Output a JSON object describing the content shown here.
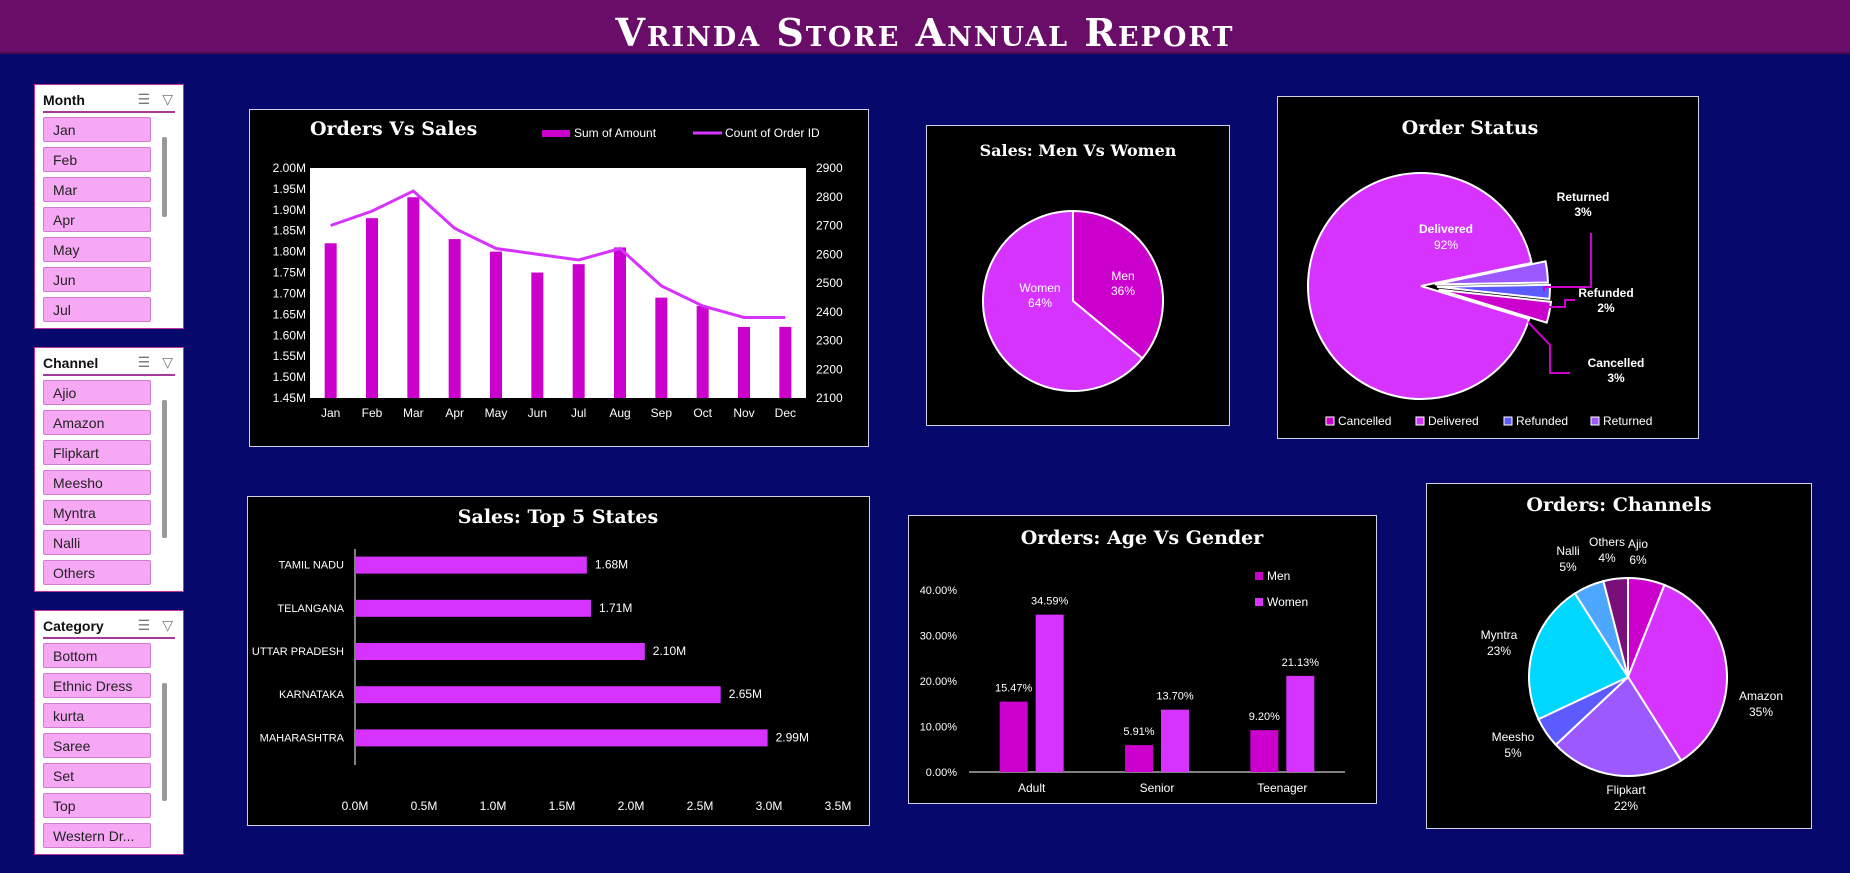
{
  "header": {
    "title": "Vrinda Store Annual Report"
  },
  "slicers": {
    "month": {
      "title": "Month",
      "items": [
        "Jan",
        "Feb",
        "Mar",
        "Apr",
        "May",
        "Jun",
        "Jul"
      ]
    },
    "channel": {
      "title": "Channel",
      "items": [
        "Ajio",
        "Amazon",
        "Flipkart",
        "Meesho",
        "Myntra",
        "Nalli",
        "Others"
      ]
    },
    "category": {
      "title": "Category",
      "items": [
        "Bottom",
        "Ethnic Dress",
        "kurta",
        "Saree",
        "Set",
        "Top",
        "Western Dr..."
      ]
    }
  },
  "colors": {
    "magenta": "#cc00cc",
    "violet": "#d633ff",
    "purple_bg": "#6a0d68",
    "navy": "#06086b",
    "cyan": "#00d7ff",
    "blue": "#4da6ff",
    "lavender": "#9b59ff",
    "plum": "#7a0f7a"
  },
  "chart_data": [
    {
      "id": "orders_vs_sales",
      "type": "bar+line",
      "title": "Orders Vs Sales",
      "categories": [
        "Jan",
        "Feb",
        "Mar",
        "Apr",
        "May",
        "Jun",
        "Jul",
        "Aug",
        "Sep",
        "Oct",
        "Nov",
        "Dec"
      ],
      "series": [
        {
          "name": "Sum of Amount",
          "type": "bar",
          "axis": "left",
          "values": [
            1.82,
            1.88,
            1.93,
            1.83,
            1.8,
            1.75,
            1.77,
            1.81,
            1.69,
            1.67,
            1.62,
            1.62
          ]
        },
        {
          "name": "Count of Order ID",
          "type": "line",
          "axis": "right",
          "values": [
            2700,
            2750,
            2820,
            2690,
            2620,
            2600,
            2580,
            2620,
            2490,
            2420,
            2380,
            2380
          ]
        }
      ],
      "y_left_ticks": [
        "2.00M",
        "1.95M",
        "1.90M",
        "1.85M",
        "1.80M",
        "1.75M",
        "1.70M",
        "1.65M",
        "1.60M",
        "1.55M",
        "1.50M",
        "1.45M"
      ],
      "y_right_ticks": [
        "2900",
        "2800",
        "2700",
        "2600",
        "2500",
        "2400",
        "2300",
        "2200",
        "2100"
      ],
      "ylim_left": [
        1.45,
        2.0
      ],
      "ylim_right": [
        2100,
        2900
      ],
      "legend": "top-right"
    },
    {
      "id": "men_vs_women",
      "type": "pie",
      "title": "Sales: Men Vs Women",
      "slices": [
        {
          "label": "Men",
          "value": 36,
          "pct": "36%"
        },
        {
          "label": "Women",
          "value": 64,
          "pct": "64%"
        }
      ]
    },
    {
      "id": "order_status",
      "type": "pie",
      "title": "Order Status",
      "slices": [
        {
          "label": "Delivered",
          "value": 92,
          "pct": "92%"
        },
        {
          "label": "Returned",
          "value": 3,
          "pct": "3%"
        },
        {
          "label": "Refunded",
          "value": 2,
          "pct": "2%"
        },
        {
          "label": "Cancelled",
          "value": 3,
          "pct": "3%"
        }
      ],
      "legend": [
        "Cancelled",
        "Delivered",
        "Refunded",
        "Returned"
      ],
      "legend_position": "bottom"
    },
    {
      "id": "top_states",
      "type": "bar",
      "orientation": "horizontal",
      "title": "Sales: Top 5 States",
      "categories": [
        "TAMIL NADU",
        "TELANGANA",
        "UTTAR PRADESH",
        "KARNATAKA",
        "MAHARASHTRA"
      ],
      "values": [
        1.68,
        1.71,
        2.1,
        2.65,
        2.99
      ],
      "labels": [
        "1.68M",
        "1.71M",
        "2.10M",
        "2.65M",
        "2.99M"
      ],
      "x_ticks": [
        "0.0M",
        "0.5M",
        "1.0M",
        "1.5M",
        "2.0M",
        "2.5M",
        "3.0M",
        "3.5M"
      ],
      "xlim": [
        0,
        3.5
      ]
    },
    {
      "id": "age_vs_gender",
      "type": "bar",
      "title": "Orders: Age Vs Gender",
      "categories": [
        "Adult",
        "Senior",
        "Teenager"
      ],
      "series": [
        {
          "name": "Men",
          "values": [
            15.47,
            5.91,
            9.2
          ],
          "labels": [
            "15.47%",
            "5.91%",
            "9.20%"
          ]
        },
        {
          "name": "Women",
          "values": [
            34.59,
            13.7,
            21.13
          ],
          "labels": [
            "34.59%",
            "13.70%",
            "21.13%"
          ]
        }
      ],
      "y_ticks": [
        "40.00%",
        "30.00%",
        "20.00%",
        "10.00%",
        "0.00%"
      ],
      "ylim": [
        0,
        40
      ],
      "legend": "top-right"
    },
    {
      "id": "channels",
      "type": "pie",
      "title": "Orders: Channels",
      "slices": [
        {
          "label": "Ajio",
          "value": 6,
          "pct": "6%"
        },
        {
          "label": "Amazon",
          "value": 35,
          "pct": "35%"
        },
        {
          "label": "Flipkart",
          "value": 22,
          "pct": "22%"
        },
        {
          "label": "Meesho",
          "value": 5,
          "pct": "5%"
        },
        {
          "label": "Myntra",
          "value": 23,
          "pct": "23%"
        },
        {
          "label": "Nalli",
          "value": 5,
          "pct": "5%"
        },
        {
          "label": "Others",
          "value": 4,
          "pct": "4%"
        }
      ]
    }
  ]
}
